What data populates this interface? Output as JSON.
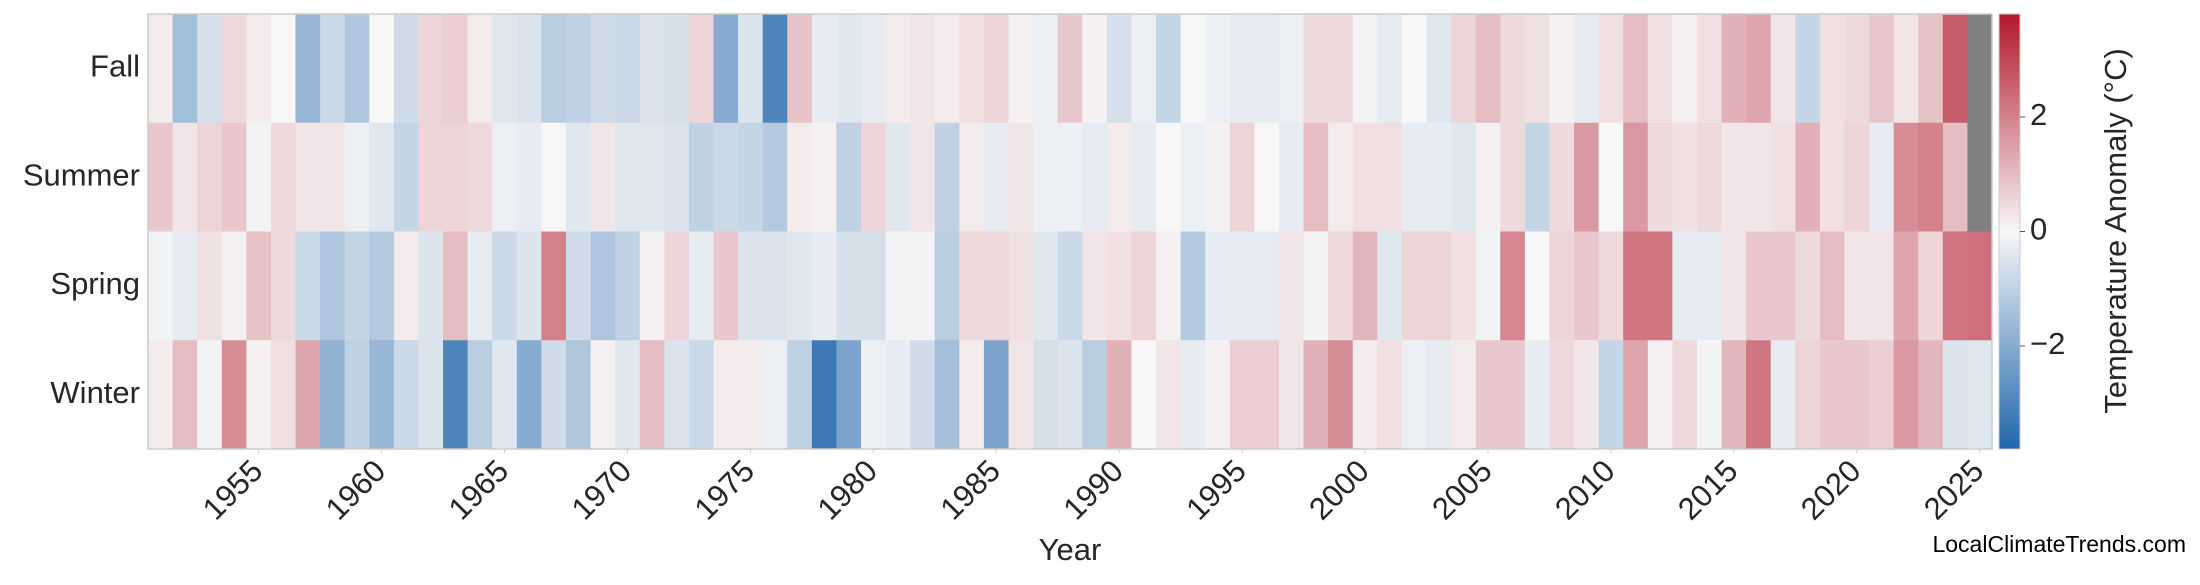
{
  "chart_data": {
    "type": "heatmap",
    "x_label": "Year",
    "colorbar_label": "Temperature Anomaly (°C)",
    "credit": "LocalClimateTrends.com",
    "x": [
      1951,
      1952,
      1953,
      1954,
      1955,
      1956,
      1957,
      1958,
      1959,
      1960,
      1961,
      1962,
      1963,
      1964,
      1965,
      1966,
      1967,
      1968,
      1969,
      1970,
      1971,
      1972,
      1973,
      1974,
      1975,
      1976,
      1977,
      1978,
      1979,
      1980,
      1981,
      1982,
      1983,
      1984,
      1985,
      1986,
      1987,
      1988,
      1989,
      1990,
      1991,
      1992,
      1993,
      1994,
      1995,
      1996,
      1997,
      1998,
      1999,
      2000,
      2001,
      2002,
      2003,
      2004,
      2005,
      2006,
      2007,
      2008,
      2009,
      2010,
      2011,
      2012,
      2013,
      2014,
      2015,
      2016,
      2017,
      2018,
      2019,
      2020,
      2021,
      2022,
      2023,
      2024,
      2025
    ],
    "xlim": [
      1950.5,
      2025.5
    ],
    "xticks": [
      1955,
      1960,
      1965,
      1970,
      1975,
      1980,
      1985,
      1990,
      1995,
      2000,
      2005,
      2010,
      2015,
      2020,
      2025
    ],
    "series": [
      {
        "name": "Fall",
        "values": [
          0.2,
          -1.5,
          -0.6,
          0.5,
          0.2,
          0.0,
          -1.7,
          -0.8,
          -1.3,
          0.0,
          -0.7,
          0.6,
          0.7,
          0.2,
          -0.4,
          -0.5,
          -1.1,
          -1.0,
          -0.7,
          -0.8,
          -0.5,
          -0.6,
          0.6,
          -2.0,
          -0.5,
          -3.0,
          0.9,
          -0.3,
          -0.4,
          -0.3,
          0.2,
          0.3,
          0.2,
          0.4,
          0.6,
          0.1,
          -0.2,
          0.8,
          0.1,
          -0.6,
          -0.2,
          -0.9,
          0.0,
          -0.2,
          -0.3,
          -0.3,
          -0.2,
          0.5,
          0.5,
          -0.1,
          -0.3,
          0.0,
          -0.4,
          0.6,
          1.0,
          0.5,
          0.4,
          0.1,
          -0.3,
          0.4,
          1.0,
          0.4,
          0.1,
          0.4,
          1.2,
          1.4,
          0.3,
          -0.9,
          0.4,
          0.5,
          0.8,
          0.3,
          0.9,
          2.6,
          null
        ]
      },
      {
        "name": "Summer",
        "values": [
          0.8,
          0.3,
          0.6,
          0.8,
          -0.1,
          0.5,
          0.3,
          0.3,
          -0.2,
          -0.4,
          -0.9,
          0.6,
          0.6,
          0.5,
          -0.2,
          -0.3,
          0.0,
          -0.4,
          0.3,
          -0.4,
          -0.4,
          -0.5,
          -1.0,
          -0.8,
          -0.9,
          -1.2,
          0.2,
          0.1,
          -1.0,
          0.6,
          -0.4,
          0.3,
          -1.0,
          0.2,
          -0.3,
          0.3,
          -0.2,
          -0.2,
          -0.3,
          0.2,
          -0.3,
          0.0,
          -0.2,
          0.1,
          0.6,
          0.0,
          -0.3,
          1.0,
          0.2,
          0.4,
          0.4,
          -0.3,
          -0.3,
          -0.4,
          0.1,
          0.5,
          -0.9,
          0.5,
          1.6,
          0.0,
          1.6,
          0.5,
          0.4,
          0.5,
          0.3,
          0.3,
          0.4,
          1.2,
          0.4,
          0.6,
          -0.3,
          1.8,
          2.0,
          1.0,
          null
        ]
      },
      {
        "name": "Spring",
        "values": [
          -0.1,
          -0.3,
          0.4,
          0.1,
          0.9,
          0.5,
          -0.8,
          -1.3,
          -0.9,
          -1.2,
          0.2,
          -0.5,
          1.0,
          -0.3,
          -0.8,
          -0.5,
          2.0,
          -0.7,
          -1.3,
          -1.0,
          0.1,
          0.6,
          -0.3,
          0.8,
          -0.5,
          -0.5,
          -0.4,
          -0.3,
          -0.6,
          -0.6,
          -0.1,
          -0.1,
          -1.1,
          0.5,
          0.5,
          0.4,
          -0.4,
          -0.8,
          0.3,
          0.4,
          0.6,
          0.1,
          -1.2,
          -0.3,
          -0.3,
          -0.3,
          0.3,
          -0.1,
          0.5,
          1.1,
          -0.4,
          0.6,
          0.6,
          0.4,
          -0.1,
          1.9,
          0.0,
          0.6,
          0.8,
          0.5,
          2.2,
          2.2,
          -0.3,
          -0.3,
          0.3,
          0.8,
          0.8,
          0.5,
          1.0,
          0.3,
          0.3,
          1.4,
          0.6,
          2.2,
          2.3
        ]
      },
      {
        "name": "Winter",
        "values": [
          0.2,
          1.0,
          -0.1,
          1.8,
          0.1,
          0.4,
          1.4,
          -1.8,
          -1.0,
          -1.7,
          -0.8,
          -0.5,
          -3.0,
          -1.1,
          -0.4,
          -2.0,
          -0.7,
          -1.3,
          0.1,
          -0.4,
          1.0,
          -0.5,
          -0.8,
          0.2,
          0.2,
          -0.2,
          -1.0,
          -3.3,
          -2.2,
          -0.2,
          -0.3,
          -0.7,
          -1.5,
          0.2,
          -2.2,
          0.3,
          -0.6,
          -0.5,
          -1.1,
          1.2,
          0.0,
          0.3,
          -0.3,
          0.1,
          0.7,
          0.7,
          0.3,
          1.2,
          1.8,
          0.2,
          0.4,
          -0.2,
          -0.3,
          0.2,
          0.8,
          0.8,
          -0.3,
          0.5,
          0.3,
          -0.9,
          1.4,
          0.1,
          0.5,
          -0.1,
          1.1,
          2.2,
          -0.3,
          0.6,
          0.8,
          0.8,
          0.7,
          1.6,
          1.1,
          -0.5,
          -0.4
        ]
      }
    ],
    "clim": [
      -3.8,
      3.8
    ],
    "cticks": [
      {
        "value": -2,
        "label": "−2"
      },
      0,
      2
    ],
    "colormap": [
      "#2166ac",
      "#f7f7f7",
      "#b2182b"
    ],
    "missing_color": "#808080"
  }
}
